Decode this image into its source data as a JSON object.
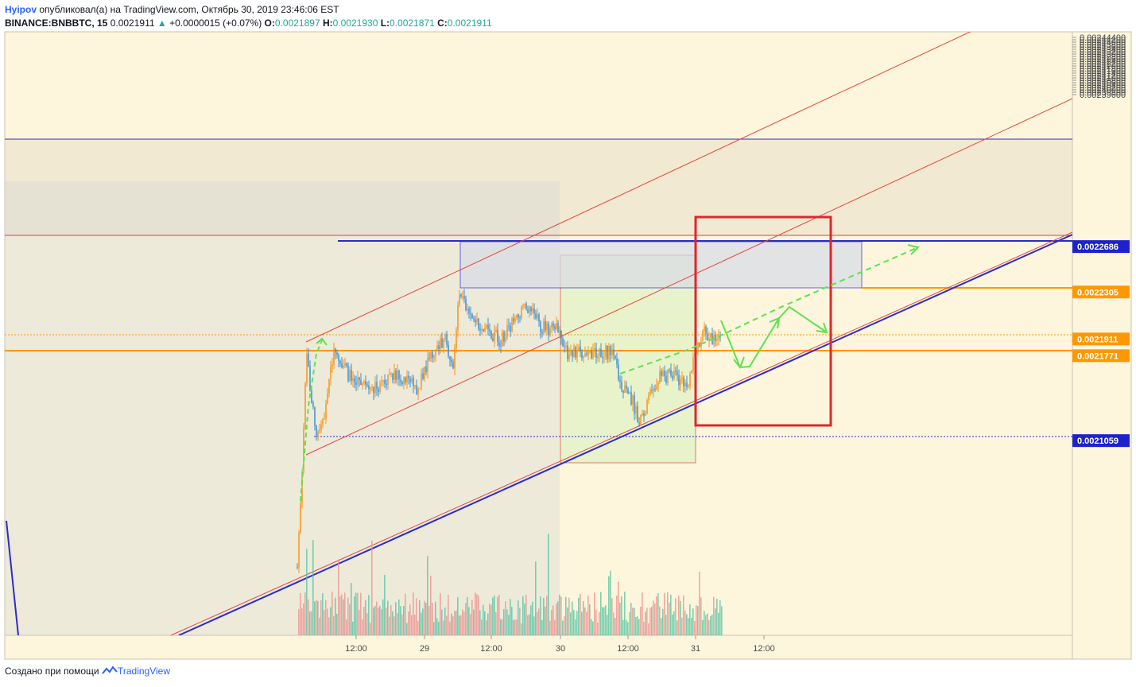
{
  "header": {
    "author": "Hyipov",
    "published_text": "опубликовал(а) на TradingView.com, Октябрь 30, 2019 23:46:06 EST",
    "symbol": "BINANCE:BNBBTC, 15",
    "last": "0.0021911",
    "change_arrow": "▲",
    "change": "+0.0000015 (+0.07%)",
    "o_label": "O:",
    "o": "0.0021897",
    "h_label": "H:",
    "h": "0.0021930",
    "l_label": "L:",
    "l": "0.0021871",
    "c_label": "C:",
    "c": "0.0021911"
  },
  "footer": {
    "created_with": "Создано при помощи",
    "brand": "TradingView"
  },
  "colors": {
    "background": "#fdf6dc",
    "candle_up": "#f7931a",
    "candle_down": "#3a8fd8",
    "volume_up": "#4fc3a1",
    "volume_down": "#ef8c8c",
    "channel_red": "#e8453c",
    "trend_blue": "#2b2bd0",
    "box_red": "#e0262b",
    "projection_green": "#5de34f",
    "label_blue": "#1e22cc",
    "label_orange": "#ff9800"
  },
  "chart_data": {
    "type": "candlestick",
    "x_ticks": [
      "12:00",
      "29",
      "12:00",
      "30",
      "12:00",
      "31",
      "12:00"
    ],
    "y_ticks": [
      "0.00244400",
      "0.00244200",
      "0.00244000",
      "0.00243800",
      "0.00243600",
      "0.00243400",
      "0.00243200",
      "0.00243000",
      "0.00242800",
      "0.00242600",
      "0.00242400",
      "0.00242200",
      "0.00242000",
      "0.00241800",
      "0.00241600",
      "0.00241400",
      "0.00241200",
      "0.00241000",
      "0.00240800",
      "0.00240600",
      "0.00240400",
      "0.00240200",
      "0.00240000",
      "0.00239800",
      "0.00239600"
    ],
    "price_labels": [
      {
        "value": "0.0022686",
        "style": "blue"
      },
      {
        "value": "0.0022305",
        "style": "orange"
      },
      {
        "value": "0.0021911",
        "style": "orange"
      },
      {
        "value": "0.0021771",
        "style": "orange"
      },
      {
        "value": "0.0021059",
        "style": "blue"
      }
    ],
    "grid": false,
    "legend": "none"
  }
}
